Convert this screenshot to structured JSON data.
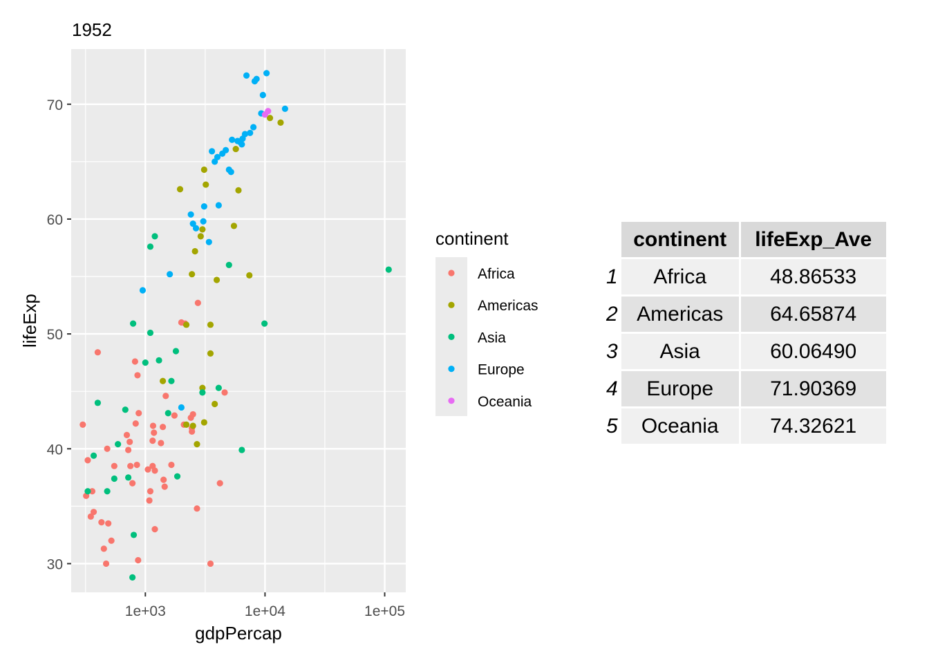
{
  "chart_data": {
    "type": "scatter",
    "title": "1952",
    "xlabel": "gdpPercap",
    "ylabel": "lifeExp",
    "x_scale": "log10",
    "xlim": [
      240,
      150000
    ],
    "ylim": [
      27.5,
      74.8
    ],
    "x_ticks": [
      1000,
      10000,
      100000
    ],
    "x_tick_labels": [
      "1e+03",
      "1e+04",
      "1e+05"
    ],
    "y_ticks": [
      30,
      40,
      50,
      60,
      70
    ],
    "y_tick_labels": [
      "30",
      "40",
      "50",
      "60",
      "70"
    ],
    "grid": true,
    "legend_title": "continent",
    "legend_position": "right",
    "series": [
      {
        "name": "Africa",
        "color": "#F8766D",
        "points": [
          [
            300,
            42.1
          ],
          [
            320,
            35.9
          ],
          [
            330,
            39
          ],
          [
            350,
            34.1
          ],
          [
            360,
            36.3
          ],
          [
            370,
            34.5
          ],
          [
            400,
            48.4
          ],
          [
            430,
            33.6
          ],
          [
            450,
            31.3
          ],
          [
            470,
            30
          ],
          [
            480,
            40
          ],
          [
            490,
            33.5
          ],
          [
            520,
            32
          ],
          [
            550,
            38.5
          ],
          [
            700,
            41.2
          ],
          [
            720,
            39.9
          ],
          [
            740,
            40.6
          ],
          [
            750,
            38.5
          ],
          [
            780,
            37
          ],
          [
            820,
            47.6
          ],
          [
            830,
            42.2
          ],
          [
            850,
            38.6
          ],
          [
            860,
            46.4
          ],
          [
            870,
            30.3
          ],
          [
            880,
            43.1
          ],
          [
            1050,
            38.2
          ],
          [
            1080,
            35.5
          ],
          [
            1100,
            36.3
          ],
          [
            1150,
            40.7
          ],
          [
            1160,
            42
          ],
          [
            1180,
            41.4
          ],
          [
            1200,
            38.1
          ],
          [
            1150,
            38.5
          ],
          [
            1200,
            33
          ],
          [
            1350,
            40.5
          ],
          [
            1400,
            41.9
          ],
          [
            1420,
            37.3
          ],
          [
            1450,
            36.7
          ],
          [
            1480,
            44.6
          ],
          [
            1650,
            38.6
          ],
          [
            1750,
            42.9
          ],
          [
            2000,
            51
          ],
          [
            2100,
            42.1
          ],
          [
            2150,
            50.9
          ],
          [
            2400,
            42.7
          ],
          [
            2450,
            41.5
          ],
          [
            2500,
            43
          ],
          [
            2450,
            41.8
          ],
          [
            2700,
            34.8
          ],
          [
            2750,
            52.7
          ],
          [
            3500,
            30
          ],
          [
            4200,
            37
          ],
          [
            4600,
            44.9
          ]
        ]
      },
      {
        "name": "Americas",
        "color": "#A3A500",
        "points": [
          [
            1400,
            45.9
          ],
          [
            1950,
            62.6
          ],
          [
            2200,
            42.1
          ],
          [
            2200,
            50.8
          ],
          [
            2450,
            55.2
          ],
          [
            2500,
            42
          ],
          [
            2600,
            57.2
          ],
          [
            2700,
            40.4
          ],
          [
            2900,
            58.5
          ],
          [
            3000,
            45.3
          ],
          [
            3000,
            59.1
          ],
          [
            3100,
            64.3
          ],
          [
            3100,
            42.3
          ],
          [
            3200,
            63
          ],
          [
            3500,
            48.3
          ],
          [
            3500,
            50.8
          ],
          [
            3800,
            43.9
          ],
          [
            3950,
            54.7
          ],
          [
            5500,
            59.4
          ],
          [
            5700,
            66.1
          ],
          [
            6000,
            62.5
          ],
          [
            7400,
            55.1
          ],
          [
            11000,
            68.8
          ],
          [
            13500,
            68.4
          ]
        ]
      },
      {
        "name": "Asia",
        "color": "#00BF7D",
        "points": [
          [
            330,
            36.3
          ],
          [
            370,
            39.4
          ],
          [
            400,
            44
          ],
          [
            480,
            36.3
          ],
          [
            550,
            37.4
          ],
          [
            590,
            40.4
          ],
          [
            680,
            43.4
          ],
          [
            720,
            37.5
          ],
          [
            780,
            28.8
          ],
          [
            790,
            50.9
          ],
          [
            800,
            32.5
          ],
          [
            1000,
            47.5
          ],
          [
            1100,
            57.6
          ],
          [
            1100,
            50.1
          ],
          [
            1200,
            58.5
          ],
          [
            1300,
            47.7
          ],
          [
            1550,
            43.1
          ],
          [
            1650,
            45.9
          ],
          [
            1800,
            48.5
          ],
          [
            1850,
            37.6
          ],
          [
            3000,
            44.9
          ],
          [
            4100,
            45.3
          ],
          [
            5000,
            56
          ],
          [
            6400,
            39.9
          ],
          [
            9900,
            50.9
          ],
          [
            108000,
            55.6
          ]
        ]
      },
      {
        "name": "Europe",
        "color": "#00B0F6",
        "points": [
          [
            950,
            53.8
          ],
          [
            1600,
            55.2
          ],
          [
            2000,
            43.6
          ],
          [
            2400,
            60.4
          ],
          [
            2500,
            59.6
          ],
          [
            2650,
            59.2
          ],
          [
            3050,
            59.8
          ],
          [
            3100,
            61.1
          ],
          [
            3400,
            58
          ],
          [
            3600,
            65.9
          ],
          [
            3800,
            65
          ],
          [
            4000,
            65.4
          ],
          [
            4100,
            61.2
          ],
          [
            4400,
            65.7
          ],
          [
            4700,
            66
          ],
          [
            5000,
            64.3
          ],
          [
            5200,
            64.1
          ],
          [
            5300,
            66.9
          ],
          [
            5900,
            66.8
          ],
          [
            6200,
            66.7
          ],
          [
            6400,
            66.5
          ],
          [
            6500,
            67
          ],
          [
            6800,
            67.4
          ],
          [
            7000,
            72.5
          ],
          [
            7500,
            67.5
          ],
          [
            8000,
            68
          ],
          [
            8200,
            72
          ],
          [
            8500,
            72.2
          ],
          [
            9300,
            69.2
          ],
          [
            9600,
            70.8
          ],
          [
            10300,
            72.7
          ],
          [
            14700,
            69.6
          ]
        ]
      },
      {
        "name": "Oceania",
        "color": "#E76BF3",
        "points": [
          [
            10000,
            69.1
          ],
          [
            10600,
            69.4
          ]
        ]
      }
    ]
  },
  "table": {
    "headers": [
      "continent",
      "lifeExp_Ave"
    ],
    "rows": [
      {
        "index": "1",
        "continent": "Africa",
        "lifeExp_Ave": "48.86533"
      },
      {
        "index": "2",
        "continent": "Americas",
        "lifeExp_Ave": "64.65874"
      },
      {
        "index": "3",
        "continent": "Asia",
        "lifeExp_Ave": "60.06490"
      },
      {
        "index": "4",
        "continent": "Europe",
        "lifeExp_Ave": "71.90369"
      },
      {
        "index": "5",
        "continent": "Oceania",
        "lifeExp_Ave": "74.32621"
      }
    ]
  }
}
